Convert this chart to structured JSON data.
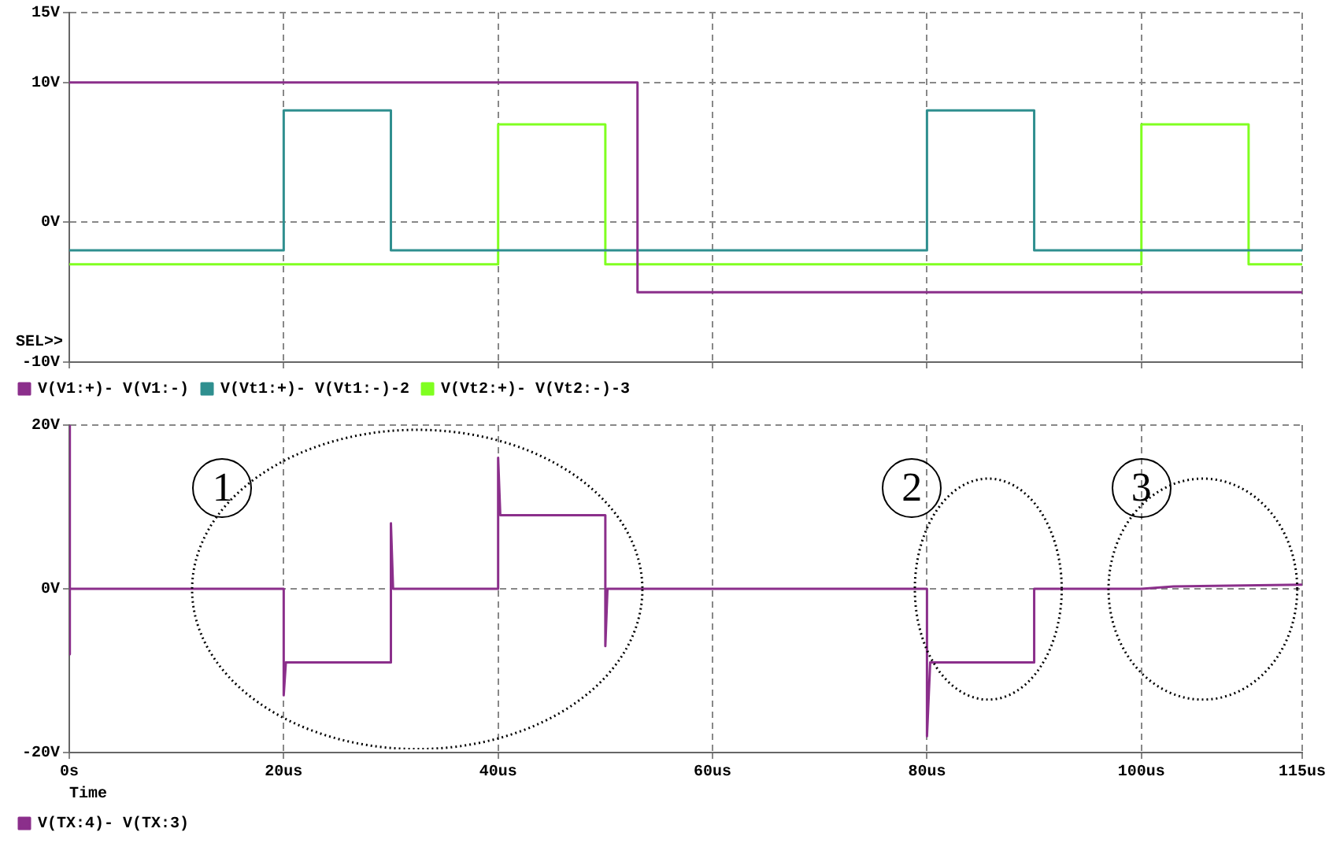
{
  "chart_data": [
    {
      "type": "step",
      "xlim": [
        0,
        115
      ],
      "xticks": [
        {
          "value": 0,
          "label": null
        },
        {
          "value": 20,
          "label": null
        },
        {
          "value": 40,
          "label": null
        },
        {
          "value": 60,
          "label": null
        },
        {
          "value": 80,
          "label": null
        },
        {
          "value": 100,
          "label": null
        },
        {
          "value": 115,
          "label": null
        }
      ],
      "ylim": [
        -10,
        15
      ],
      "yticks": [
        {
          "value": -10,
          "label": "-10V"
        },
        {
          "value": 0,
          "label": "0V"
        },
        {
          "value": 10,
          "label": "10V"
        },
        {
          "value": 15,
          "label": "15V"
        }
      ],
      "tick_labels": "y",
      "grid": true,
      "legend": "bottom",
      "marker": "none",
      "line_style": "solid",
      "annotations": [
        "SEL>>"
      ],
      "series": [
        {
          "name": "V(V1:+)- V(V1:-)",
          "color": "#8b2f8b",
          "x": [
            0,
            53,
            115
          ],
          "values": [
            10,
            -5,
            -5
          ]
        },
        {
          "name": "V(Vt1:+)- V(Vt1:-)-2",
          "color": "#2f8f8f",
          "x": [
            0,
            20,
            30,
            80,
            90,
            115
          ],
          "values": [
            -2,
            8,
            -2,
            8,
            -2,
            -2
          ]
        },
        {
          "name": "V(Vt2:+)- V(Vt2:-)-3",
          "color": "#80ff20",
          "x": [
            0,
            40,
            50,
            100,
            110,
            115
          ],
          "values": [
            -3,
            7,
            -3,
            7,
            -3,
            -3
          ]
        }
      ]
    },
    {
      "type": "line",
      "xlabel": "Time",
      "xlim": [
        0,
        115
      ],
      "xticks": [
        {
          "value": 0,
          "label": "0s"
        },
        {
          "value": 20,
          "label": "20us"
        },
        {
          "value": 40,
          "label": "40us"
        },
        {
          "value": 60,
          "label": "60us"
        },
        {
          "value": 80,
          "label": "80us"
        },
        {
          "value": 100,
          "label": "100us"
        },
        {
          "value": 115,
          "label": "115us"
        }
      ],
      "ylim": [
        -20,
        20
      ],
      "yticks": [
        {
          "value": -20,
          "label": "-20V"
        },
        {
          "value": 0,
          "label": "0V"
        },
        {
          "value": 20,
          "label": "20V"
        }
      ],
      "grid": true,
      "legend": "bottom",
      "marker": "none",
      "line_style": "solid",
      "annotations": [
        {
          "text": "1",
          "x": 14.3,
          "y": 12.3
        },
        {
          "text": "2",
          "x": 78.6,
          "y": 12.3
        },
        {
          "text": "3",
          "x": 100,
          "y": 12.3
        }
      ],
      "series": [
        {
          "name": "V(TX:4)- V(TX:3)",
          "color": "#8b2f8b",
          "x": [
            0,
            0,
            0.1,
            20,
            20,
            20.2,
            30,
            30,
            30.2,
            40,
            40,
            40.2,
            50,
            50,
            50.2,
            80,
            80,
            80.3,
            90,
            90,
            100,
            103,
            115
          ],
          "values": [
            20,
            -8,
            0,
            0,
            -13,
            -9,
            -9,
            8,
            0,
            0,
            16,
            9,
            9,
            -7,
            0,
            0,
            -18,
            -9,
            -9,
            0,
            0,
            0.3,
            0.5
          ]
        }
      ]
    }
  ]
}
